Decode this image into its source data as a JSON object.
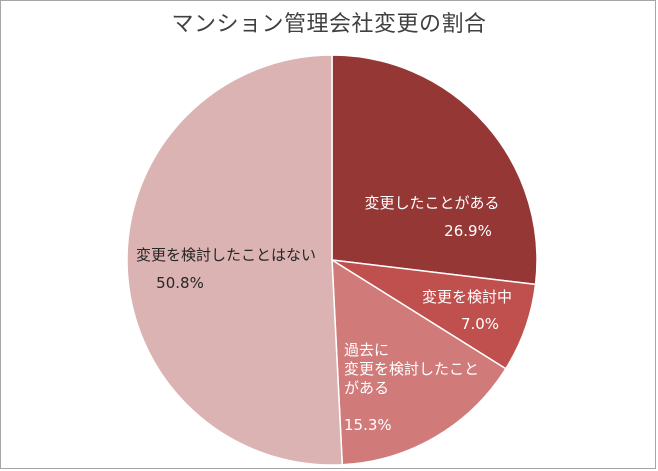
{
  "chart_data": {
    "type": "pie",
    "title": "マンション管理会社変更の割合",
    "slices": [
      {
        "label_lines": [
          "変更したことがある"
        ],
        "value_text": "26.9%",
        "value": 26.9,
        "color": "#953735"
      },
      {
        "label_lines": [
          "変更を検討中"
        ],
        "value_text": "7.0%",
        "value": 7.0,
        "color": "#c0504d"
      },
      {
        "label_lines": [
          "過去に",
          "変更を検討したこと",
          "がある"
        ],
        "value_text": "15.3%",
        "value": 15.3,
        "color": "#d07b7a"
      },
      {
        "label_lines": [
          "変更を検討したことはない"
        ],
        "value_text": "50.8%",
        "value": 50.8,
        "color": "#dbb3b2"
      }
    ],
    "start": "12 o'clock",
    "direction": "clockwise",
    "legend": "none"
  }
}
